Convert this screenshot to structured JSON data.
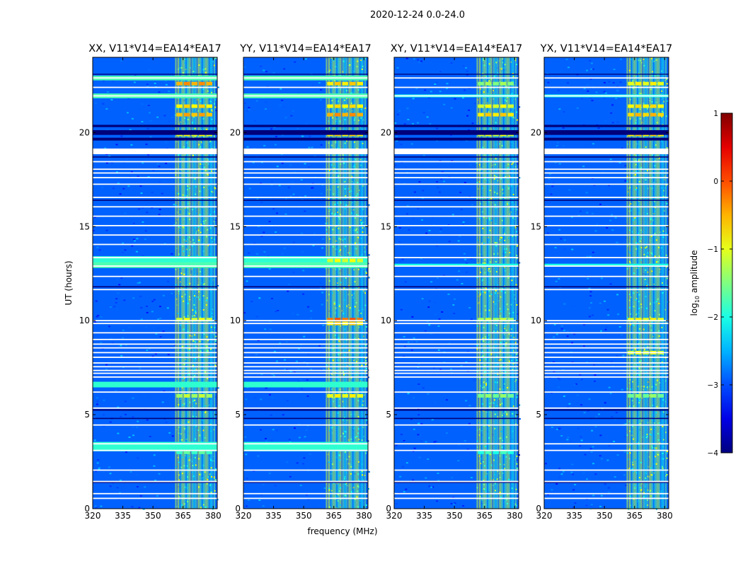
{
  "figure": {
    "suptitle": "2020-12-24 0.0-24.0"
  },
  "chart_data": [
    {
      "type": "heatmap",
      "title": "XX, V11*V14=EA14*EA17",
      "xlabel": "frequency (MHz)",
      "ylabel": "UT (hours)",
      "xlim": [
        320,
        382
      ],
      "ylim": [
        0,
        24
      ],
      "xticks": [
        320,
        335,
        350,
        365,
        380
      ],
      "yticks": [
        0,
        5,
        10,
        15,
        20
      ],
      "variant": "XX"
    },
    {
      "type": "heatmap",
      "title": "YY, V11*V14=EA14*EA17",
      "xlabel": "frequency (MHz)",
      "ylabel": "UT (hours)",
      "xlim": [
        320,
        382
      ],
      "ylim": [
        0,
        24
      ],
      "xticks": [
        320,
        335,
        350,
        365,
        380
      ],
      "yticks": [
        0,
        5,
        10,
        15,
        20
      ],
      "variant": "YY"
    },
    {
      "type": "heatmap",
      "title": "XY, V11*V14=EA14*EA17",
      "xlabel": "frequency (MHz)",
      "ylabel": "UT (hours)",
      "xlim": [
        320,
        382
      ],
      "ylim": [
        0,
        24
      ],
      "xticks": [
        320,
        335,
        350,
        365,
        380
      ],
      "yticks": [
        0,
        5,
        10,
        15,
        20
      ],
      "variant": "XY"
    },
    {
      "type": "heatmap",
      "title": "YX, V11*V14=EA14*EA17",
      "xlabel": "frequency (MHz)",
      "ylabel": "UT (hours)",
      "xlim": [
        320,
        382
      ],
      "ylim": [
        0,
        24
      ],
      "xticks": [
        320,
        335,
        350,
        365,
        380
      ],
      "yticks": [
        0,
        5,
        10,
        15,
        20
      ],
      "variant": "YX"
    }
  ],
  "colorbar": {
    "label": "log",
    "label_sub": "10",
    "label_rest": " amplitude",
    "range": [
      -4,
      1
    ],
    "ticks": [
      "1",
      "0",
      "−1",
      "−2",
      "−3",
      "−4"
    ],
    "tick_values": [
      1,
      0,
      -1,
      -2,
      -3,
      -4
    ],
    "colormap": "jet"
  },
  "flagged_times_hours": [
    0.55,
    0.8,
    1.45,
    2.05,
    3.1,
    3.45,
    4.45,
    5.35,
    6.2,
    7.0,
    7.2,
    7.35,
    7.55,
    7.75,
    8.05,
    8.3,
    8.55,
    8.75,
    9.0,
    9.35,
    9.85,
    10.0,
    11.65,
    12.35,
    12.9,
    13.35,
    14.05,
    14.55,
    15.05,
    15.55,
    16.05,
    16.55,
    17.25,
    17.6,
    17.85,
    18.05,
    18.45,
    18.95,
    19.05,
    21.95,
    22.4,
    22.9
  ],
  "rfi_band_mhz": [
    361,
    381
  ],
  "rfi_channels_mhz": [
    362.0,
    363.5,
    366.5,
    369.0,
    372.0,
    374.5,
    378.0,
    380.0
  ]
}
